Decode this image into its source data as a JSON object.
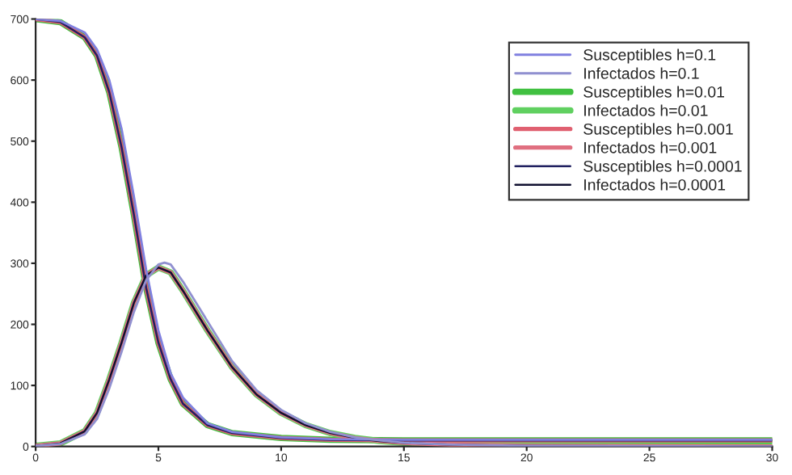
{
  "chart_data": {
    "type": "line",
    "xlim": [
      0,
      30
    ],
    "ylim": [
      0,
      700
    ],
    "xticks": [
      0,
      5,
      10,
      15,
      20,
      25,
      30
    ],
    "yticks": [
      0,
      100,
      200,
      300,
      400,
      500,
      600,
      700
    ],
    "grid": false,
    "legend": "top right",
    "marker": "none",
    "line_style": "solid",
    "series": [
      {
        "name": "Susceptibles h=0.1",
        "color": "#8080e0",
        "x": [
          0,
          1,
          2,
          2.5,
          3,
          3.5,
          4,
          4.5,
          5,
          5.5,
          6,
          7,
          8,
          10,
          12,
          15,
          20,
          30
        ],
        "values": [
          700,
          697,
          678,
          650,
          600,
          520,
          410,
          290,
          190,
          120,
          80,
          38,
          24,
          15,
          12,
          11,
          11,
          11
        ]
      },
      {
        "name": "Infectados h=0.1",
        "color": "#9090d0",
        "x": [
          0,
          1,
          2,
          2.5,
          3,
          3.5,
          4,
          4.5,
          5,
          5.25,
          5.5,
          6,
          7,
          8,
          9,
          10,
          11,
          12,
          13,
          14,
          15,
          17,
          20,
          30
        ],
        "values": [
          1,
          4,
          20,
          45,
          95,
          155,
          220,
          272,
          298,
          301,
          298,
          270,
          205,
          140,
          92,
          60,
          38,
          24,
          15,
          10,
          6,
          3,
          1,
          0
        ]
      },
      {
        "name": "Susceptibles h=0.01",
        "color": "#40c040",
        "x": [
          0,
          1,
          2,
          2.5,
          3,
          3.5,
          4,
          4.5,
          5,
          5.5,
          6,
          7,
          8,
          10,
          12,
          15,
          20,
          30
        ],
        "values": [
          700,
          695,
          670,
          640,
          580,
          490,
          380,
          260,
          170,
          110,
          70,
          35,
          22,
          14,
          11,
          10,
          10,
          10
        ]
      },
      {
        "name": "Infectados h=0.01",
        "color": "#60d060",
        "x": [
          0,
          1,
          2,
          2.5,
          3,
          3.5,
          4,
          4.5,
          5,
          5.5,
          6,
          7,
          8,
          9,
          10,
          11,
          12,
          13,
          14,
          15,
          17,
          20,
          30
        ],
        "values": [
          1,
          5,
          25,
          55,
          110,
          170,
          235,
          280,
          293,
          285,
          255,
          190,
          130,
          85,
          55,
          35,
          22,
          14,
          9,
          6,
          3,
          1,
          0
        ]
      },
      {
        "name": "Susceptibles h=0.001",
        "color": "#e06070",
        "x": [
          0,
          1,
          2,
          2.5,
          3,
          3.5,
          4,
          4.5,
          5,
          5.5,
          6,
          7,
          8,
          10,
          12,
          15,
          20,
          30
        ],
        "values": [
          700,
          695,
          670,
          640,
          580,
          490,
          380,
          260,
          170,
          110,
          70,
          35,
          22,
          14,
          11,
          10,
          10,
          10
        ]
      },
      {
        "name": "Infectados h=0.001",
        "color": "#e07080",
        "x": [
          0,
          1,
          2,
          2.5,
          3,
          3.5,
          4,
          4.5,
          5,
          5.5,
          6,
          7,
          8,
          9,
          10,
          11,
          12,
          13,
          14,
          15,
          17,
          20,
          30
        ],
        "values": [
          1,
          5,
          25,
          55,
          110,
          170,
          235,
          280,
          293,
          285,
          255,
          190,
          130,
          85,
          55,
          35,
          22,
          14,
          9,
          6,
          3,
          1,
          0
        ]
      },
      {
        "name": "Susceptibles h=0.0001",
        "color": "#202060",
        "x": [
          0,
          1,
          2,
          2.5,
          3,
          3.5,
          4,
          4.5,
          5,
          5.5,
          6,
          7,
          8,
          10,
          12,
          15,
          20,
          30
        ],
        "values": [
          700,
          695,
          670,
          640,
          580,
          490,
          380,
          260,
          170,
          110,
          70,
          35,
          22,
          14,
          11,
          10,
          10,
          10
        ]
      },
      {
        "name": "Infectados h=0.0001",
        "color": "#101030",
        "x": [
          0,
          1,
          2,
          2.5,
          3,
          3.5,
          4,
          4.5,
          5,
          5.5,
          6,
          7,
          8,
          9,
          10,
          11,
          12,
          13,
          14,
          15,
          17,
          20,
          30
        ],
        "values": [
          1,
          5,
          25,
          55,
          110,
          170,
          235,
          280,
          293,
          285,
          255,
          190,
          130,
          85,
          55,
          35,
          22,
          14,
          9,
          6,
          3,
          1,
          0
        ]
      }
    ]
  }
}
